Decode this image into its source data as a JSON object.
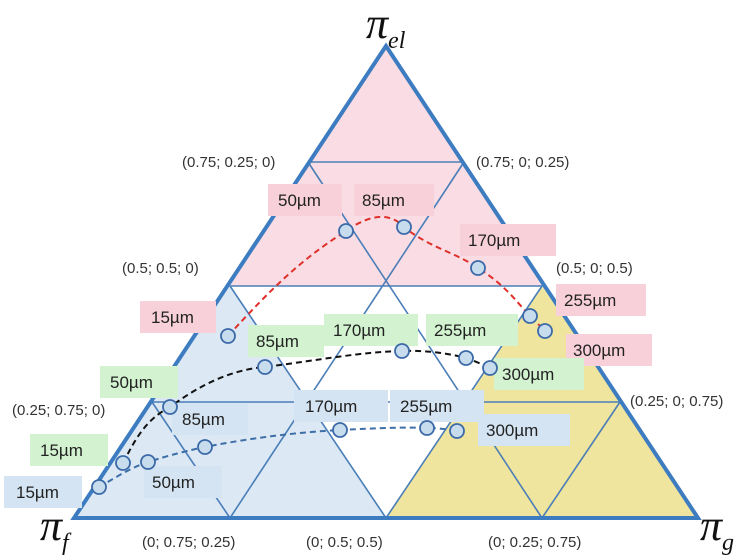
{
  "vertices": {
    "top": {
      "main": "π",
      "sub": "el"
    },
    "left": {
      "main": "π",
      "sub": "f"
    },
    "right": {
      "main": "π",
      "sub": "g"
    }
  },
  "colors": {
    "outline": "#3d7cc0",
    "grid": "#4a7eb8",
    "pink": "#f9dce4",
    "blue": "#dce8f4",
    "yellow": "#f0e59e",
    "tag_pink": "#f8d0da",
    "tag_green": "#d2f2d0",
    "tag_blue": "#d4e4f2",
    "curve_red": "#e0302a",
    "curve_black": "#111111",
    "curve_blue": "#3c6ea8",
    "marker_fill": "#c7dced",
    "marker_stroke": "#3c6aa8"
  },
  "coordinate_labels": [
    {
      "text": "(0.75; 0.25; 0)"
    },
    {
      "text": "(0.75; 0; 0.25)"
    },
    {
      "text": "(0.5; 0.5; 0)"
    },
    {
      "text": "(0.5; 0; 0.5)"
    },
    {
      "text": "(0.25; 0.75; 0)"
    },
    {
      "text": "(0.25; 0; 0.75)"
    },
    {
      "text": "(0; 0.75; 0.25)"
    },
    {
      "text": "(0; 0.5; 0.5)"
    },
    {
      "text": "(0; 0.25; 0.75)"
    }
  ],
  "series": [
    {
      "color": "pink",
      "curve": "red",
      "points": [
        {
          "label": "15µm"
        },
        {
          "label": "50µm"
        },
        {
          "label": "85µm"
        },
        {
          "label": "170µm"
        },
        {
          "label": "255µm"
        },
        {
          "label": "300µm"
        }
      ]
    },
    {
      "color": "green",
      "curve": "black",
      "points": [
        {
          "label": "15µm"
        },
        {
          "label": "50µm"
        },
        {
          "label": "85µm"
        },
        {
          "label": "170µm"
        },
        {
          "label": "255µm"
        },
        {
          "label": "300µm"
        }
      ]
    },
    {
      "color": "blue",
      "curve": "blue",
      "points": [
        {
          "label": "15µm"
        },
        {
          "label": "50µm"
        },
        {
          "label": "85µm"
        },
        {
          "label": "170µm"
        },
        {
          "label": "255µm"
        },
        {
          "label": "300µm"
        }
      ]
    }
  ]
}
